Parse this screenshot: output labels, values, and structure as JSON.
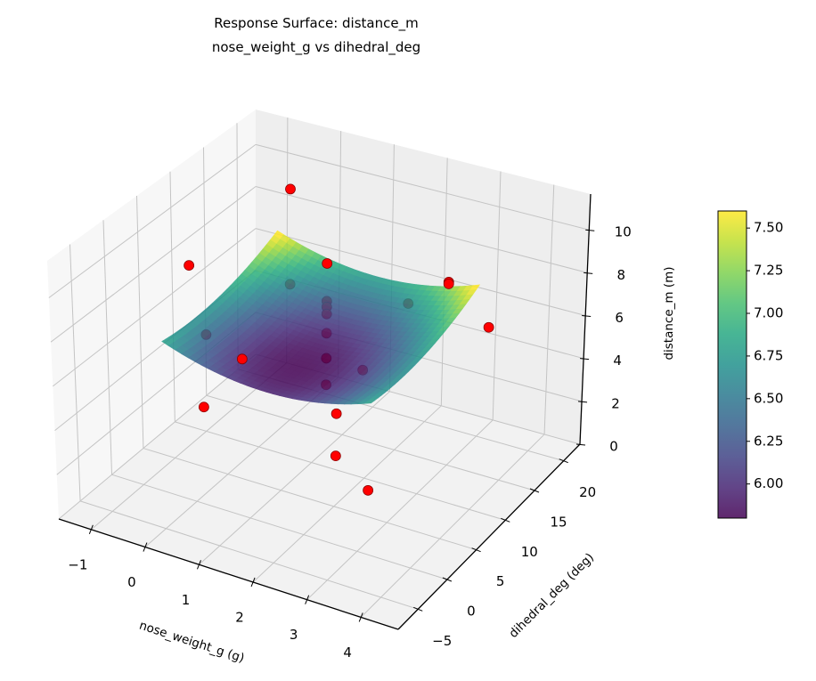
{
  "chart_data": {
    "type": "surface",
    "title": [
      "Response Surface: distance_m",
      "nose_weight_g vs dihedral_deg"
    ],
    "xlabel": "nose_weight_g (g)",
    "ylabel": "dihedral_deg (deg)",
    "zlabel": "distance_m (m)",
    "xlim": [
      -1.6,
      4.69
    ],
    "ylim": [
      -8.4,
      22.8
    ],
    "zlim": [
      0,
      11.67
    ],
    "xticks": [
      -1,
      0,
      1,
      2,
      3,
      4
    ],
    "yticks": [
      -5,
      0,
      5,
      10,
      15,
      20
    ],
    "zticks": [
      0,
      2,
      4,
      6,
      8,
      10
    ],
    "xtick_labels": [
      "−1",
      "0",
      "1",
      "2",
      "3",
      "4"
    ],
    "ytick_labels": [
      "−5",
      "0",
      "5",
      "10",
      "15",
      "20"
    ],
    "ztick_labels": [
      "0",
      "2",
      "4",
      "6",
      "8",
      "10"
    ],
    "grid": true,
    "view": {
      "elev": 30,
      "azim": -60
    },
    "surface": {
      "colormap": "viridis",
      "x_range": [
        -0.6,
        3.2
      ],
      "y_range": [
        0,
        18
      ],
      "model": {
        "intercept": 5.8,
        "x_center": 1.3,
        "x_quad": 0.25,
        "y_center": 5,
        "y_quad": 0.006
      },
      "alpha": 0.85
    },
    "points": {
      "color": "#ff0000",
      "edge_color": "#8b0000",
      "data": [
        {
          "x": -0.6,
          "y": 20,
          "z": 9.2,
          "occluded": false
        },
        {
          "x": -1.1,
          "y": 8.5,
          "z": 8.0,
          "occluded": false
        },
        {
          "x": 0.1,
          "y": 20,
          "z": 6.15,
          "occluded": false
        },
        {
          "x": -0.6,
          "y": 20,
          "z": 4.7,
          "occluded": true
        },
        {
          "x": 2.4,
          "y": 20,
          "z": 6.8,
          "occluded": false
        },
        {
          "x": 2.4,
          "y": 20,
          "z": 6.72,
          "occluded": false
        },
        {
          "x": 1.3,
          "y": 23,
          "z": 4.3,
          "occluded": true
        },
        {
          "x": 0.1,
          "y": 20,
          "z": 4.37,
          "occluded": true
        },
        {
          "x": 0.1,
          "y": 20,
          "z": 4.1,
          "occluded": true
        },
        {
          "x": 0.1,
          "y": 20,
          "z": 3.77,
          "occluded": true
        },
        {
          "x": -0.8,
          "y": 8.5,
          "z": 5.0,
          "occluded": true
        },
        {
          "x": 0.1,
          "y": 20,
          "z": 2.86,
          "occluded": true
        },
        {
          "x": 4.4,
          "y": 8.5,
          "z": 9.0,
          "occluded": false
        },
        {
          "x": 1.2,
          "y": -3,
          "z": 8.1,
          "occluded": false
        },
        {
          "x": 0.8,
          "y": 20,
          "z": 1.6,
          "occluded": true
        },
        {
          "x": 0.1,
          "y": 20,
          "z": 1.68,
          "occluded": true
        },
        {
          "x": 0.1,
          "y": 20,
          "z": 0.43,
          "occluded": true
        },
        {
          "x": 0.5,
          "y": -3,
          "z": 5.4,
          "occluded": false
        },
        {
          "x": 2.9,
          "y": -3,
          "z": 6.9,
          "occluded": false
        },
        {
          "x": 2.9,
          "y": -3,
          "z": 5.0,
          "occluded": false
        },
        {
          "x": 3.5,
          "y": -3,
          "z": 3.9,
          "occluded": false
        }
      ]
    },
    "colorbar": {
      "range": [
        5.8,
        7.6
      ],
      "ticks": [
        6.0,
        6.25,
        6.5,
        6.75,
        7.0,
        7.25,
        7.5
      ],
      "tick_labels": [
        "6.00",
        "6.25",
        "6.50",
        "6.75",
        "7.00",
        "7.25",
        "7.50"
      ]
    }
  }
}
